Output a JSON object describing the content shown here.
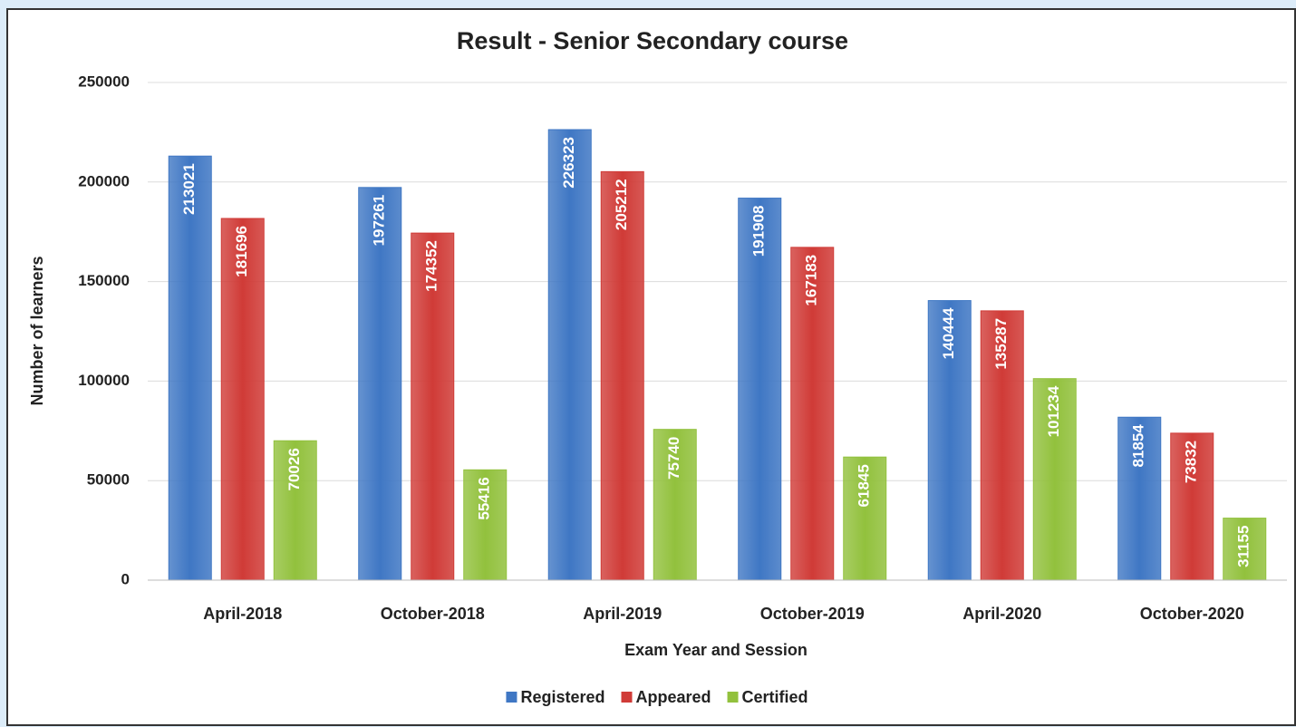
{
  "chart_data": {
    "type": "bar",
    "title": "Result - Senior Secondary course",
    "x_label": "Exam Year and Session",
    "y_label": "Number of learners",
    "categories": [
      "April-2018",
      "October-2018",
      "April-2019",
      "October-2019",
      "April-2020",
      "October-2020"
    ],
    "series": [
      {
        "name": "Registered",
        "color": "#3f77c4",
        "values": [
          213021,
          197261,
          226323,
          191908,
          140444,
          81854
        ]
      },
      {
        "name": "Appeared",
        "color": "#d03b37",
        "values": [
          181696,
          174352,
          205212,
          167183,
          135287,
          73832
        ]
      },
      {
        "name": "Certified",
        "color": "#92c13d",
        "values": [
          70026,
          55416,
          75740,
          61845,
          101234,
          31155
        ]
      }
    ],
    "ylim": [
      0,
      250000
    ],
    "yticks": [
      0,
      50000,
      100000,
      150000,
      200000,
      250000
    ],
    "grid": true,
    "legend": "bottom"
  }
}
